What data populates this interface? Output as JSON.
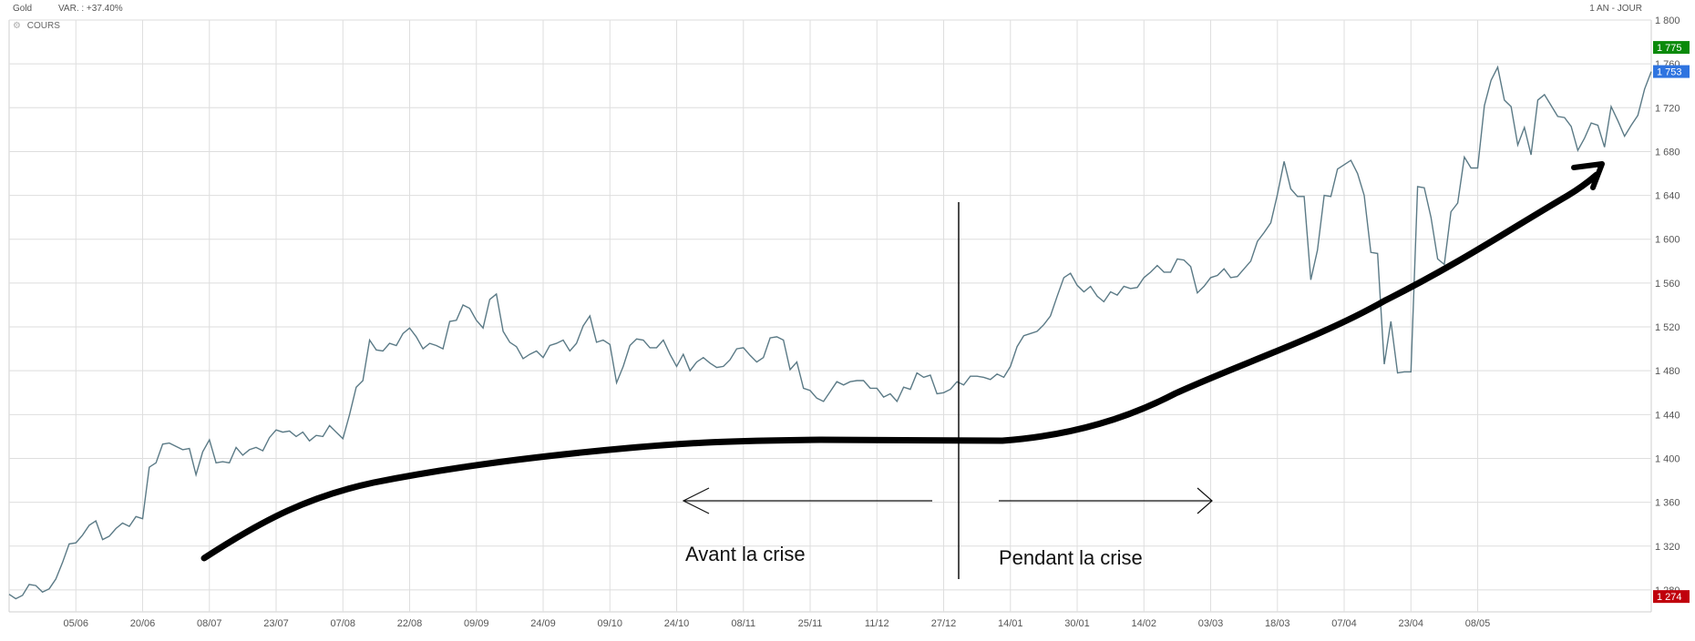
{
  "header": {
    "instrument": "Gold",
    "variation": "VAR. : +37.40%",
    "period": "1 AN - JOUR",
    "series_label": "COURS"
  },
  "chart_data": {
    "type": "line",
    "title": "",
    "xlabel": "",
    "ylabel": "",
    "ylim": [
      1260,
      1800
    ],
    "grid": true,
    "y_ticks": [
      "1 280",
      "1 320",
      "1 360",
      "1 400",
      "1 440",
      "1 480",
      "1 520",
      "1 560",
      "1 600",
      "1 640",
      "1 680",
      "1 720",
      "1 760",
      "1 800"
    ],
    "y_tick_values": [
      1280,
      1320,
      1360,
      1400,
      1440,
      1480,
      1520,
      1560,
      1600,
      1640,
      1680,
      1720,
      1760,
      1800
    ],
    "x_ticks": [
      "05/06",
      "20/06",
      "08/07",
      "23/07",
      "07/08",
      "22/08",
      "09/09",
      "24/09",
      "09/10",
      "24/10",
      "08/11",
      "25/11",
      "11/12",
      "27/12",
      "14/01",
      "30/01",
      "14/02",
      "03/03",
      "18/03",
      "07/04",
      "23/04",
      "08/05"
    ],
    "x_tick_index": [
      10,
      20,
      30,
      40,
      50,
      60,
      70,
      80,
      90,
      100,
      110,
      120,
      130,
      140,
      150,
      160,
      170,
      180,
      190,
      200,
      210,
      220
    ],
    "series": [
      {
        "values": [
          1276,
          1272,
          1275,
          1285,
          1284,
          1278,
          1281,
          1290,
          1305,
          1322,
          1323,
          1330,
          1339,
          1343,
          1326,
          1329,
          1336,
          1341,
          1338,
          1347,
          1345,
          1392,
          1396,
          1413,
          1414,
          1411,
          1408,
          1409,
          1385,
          1406,
          1417,
          1396,
          1397,
          1396,
          1410,
          1403,
          1408,
          1410,
          1407,
          1419,
          1426,
          1424,
          1425,
          1420,
          1424,
          1416,
          1421,
          1420,
          1430,
          1424,
          1418,
          1440,
          1465,
          1471,
          1508,
          1499,
          1498,
          1505,
          1503,
          1514,
          1519,
          1511,
          1500,
          1505,
          1503,
          1500,
          1525,
          1526,
          1540,
          1537,
          1526,
          1519,
          1545,
          1550,
          1516,
          1506,
          1502,
          1491,
          1495,
          1498,
          1492,
          1503,
          1505,
          1508,
          1498,
          1505,
          1521,
          1530,
          1506,
          1508,
          1504,
          1469,
          1484,
          1503,
          1509,
          1508,
          1501,
          1501,
          1508,
          1495,
          1484,
          1495,
          1480,
          1488,
          1492,
          1487,
          1483,
          1484,
          1490,
          1500,
          1501,
          1494,
          1488,
          1492,
          1510,
          1511,
          1508,
          1481,
          1488,
          1464,
          1462,
          1455,
          1452,
          1461,
          1470,
          1467,
          1470,
          1471,
          1471,
          1464,
          1464,
          1456,
          1459,
          1452,
          1465,
          1463,
          1478,
          1474,
          1476,
          1459,
          1460,
          1463,
          1470,
          1467,
          1475,
          1475,
          1474,
          1472,
          1477,
          1474,
          1484,
          1502,
          1512,
          1514,
          1516,
          1522,
          1530,
          1548,
          1565,
          1569,
          1558,
          1552,
          1557,
          1548,
          1543,
          1552,
          1549,
          1557,
          1555,
          1556,
          1565,
          1570,
          1576,
          1570,
          1570,
          1582,
          1581,
          1575,
          1551,
          1557,
          1565,
          1567,
          1573,
          1565,
          1566,
          1573,
          1580,
          1598,
          1606,
          1615,
          1641,
          1671,
          1646,
          1639,
          1639,
          1563,
          1590,
          1640,
          1639,
          1664,
          1668,
          1672,
          1660,
          1640,
          1588,
          1587,
          1486,
          1525,
          1478,
          1479,
          1479,
          1648,
          1647,
          1620,
          1582,
          1577,
          1625,
          1633,
          1675,
          1665,
          1665,
          1722,
          1745,
          1757,
          1727,
          1721,
          1686,
          1702,
          1677,
          1727,
          1732,
          1722,
          1712,
          1711,
          1703,
          1681,
          1692,
          1706,
          1704,
          1684,
          1721,
          1708,
          1694,
          1704,
          1713,
          1737,
          1753
        ]
      }
    ],
    "price_badges": [
      {
        "value": "1 775",
        "color": "#0a8a0a"
      },
      {
        "value": "1 753",
        "color": "#2f74e0"
      },
      {
        "value": "1 274",
        "color": "#c0000c"
      }
    ],
    "annotations": {
      "before_label": "Avant la crise",
      "during_label": "Pendant la crise"
    },
    "colors": {
      "line": "#5b7a86",
      "grid": "#dedede",
      "trend": "#000000"
    }
  }
}
